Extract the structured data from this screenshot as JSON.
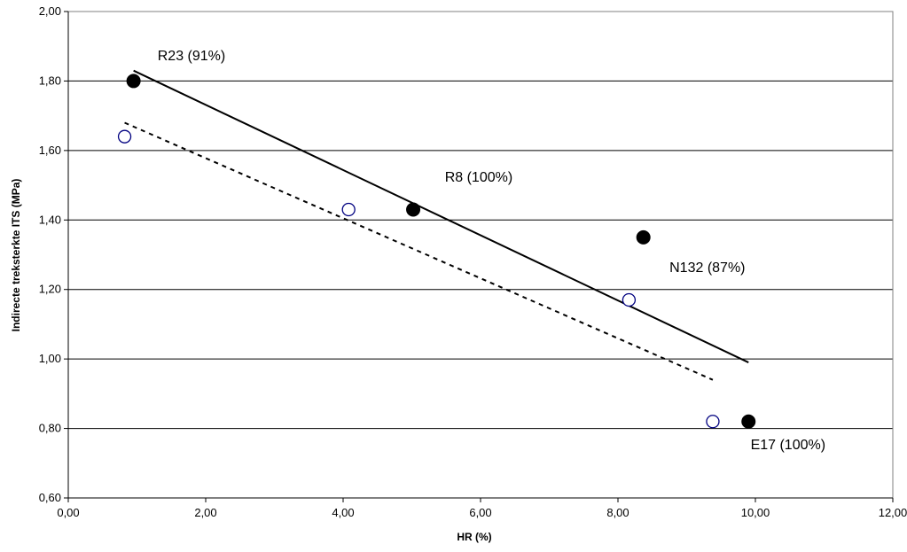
{
  "chart_data": {
    "type": "scatter",
    "xlabel": "HR (%)",
    "ylabel": "Indirecte treksterkte ITS (MPa)",
    "xlim": [
      0,
      12
    ],
    "ylim": [
      0.6,
      2.0
    ],
    "xticks": [
      0,
      2,
      4,
      6,
      8,
      10,
      12
    ],
    "yticks": [
      0.6,
      0.8,
      1.0,
      1.2,
      1.4,
      1.6,
      1.8,
      2.0
    ],
    "tick_decimals": 2,
    "decimal_separator": ",",
    "grid": "horizontal",
    "legend": "none",
    "series": [
      {
        "marker": "filled-circle",
        "color": "#000000",
        "points": [
          {
            "x": 0.95,
            "y": 1.8
          },
          {
            "x": 5.02,
            "y": 1.43
          },
          {
            "x": 8.37,
            "y": 1.35
          },
          {
            "x": 9.9,
            "y": 0.82
          }
        ],
        "trendline": {
          "style": "solid",
          "from": [
            0.95,
            1.83
          ],
          "to": [
            9.9,
            0.99
          ]
        }
      },
      {
        "marker": "open-circle",
        "color": "#000080",
        "points": [
          {
            "x": 0.82,
            "y": 1.64
          },
          {
            "x": 4.08,
            "y": 1.43
          },
          {
            "x": 8.16,
            "y": 1.17
          },
          {
            "x": 9.38,
            "y": 0.82
          }
        ],
        "trendline": {
          "style": "dashed",
          "from": [
            0.82,
            1.68
          ],
          "to": [
            9.38,
            0.94
          ]
        }
      }
    ],
    "annotations": [
      {
        "text": "R23 (91%)",
        "x": 1.3,
        "y": 1.86
      },
      {
        "text": "R8 (100%)",
        "x": 5.48,
        "y": 1.51
      },
      {
        "text": "N132 (87%)",
        "x": 8.75,
        "y": 1.25
      },
      {
        "text": "E17 (100%)",
        "x": 9.93,
        "y": 0.74
      }
    ]
  }
}
